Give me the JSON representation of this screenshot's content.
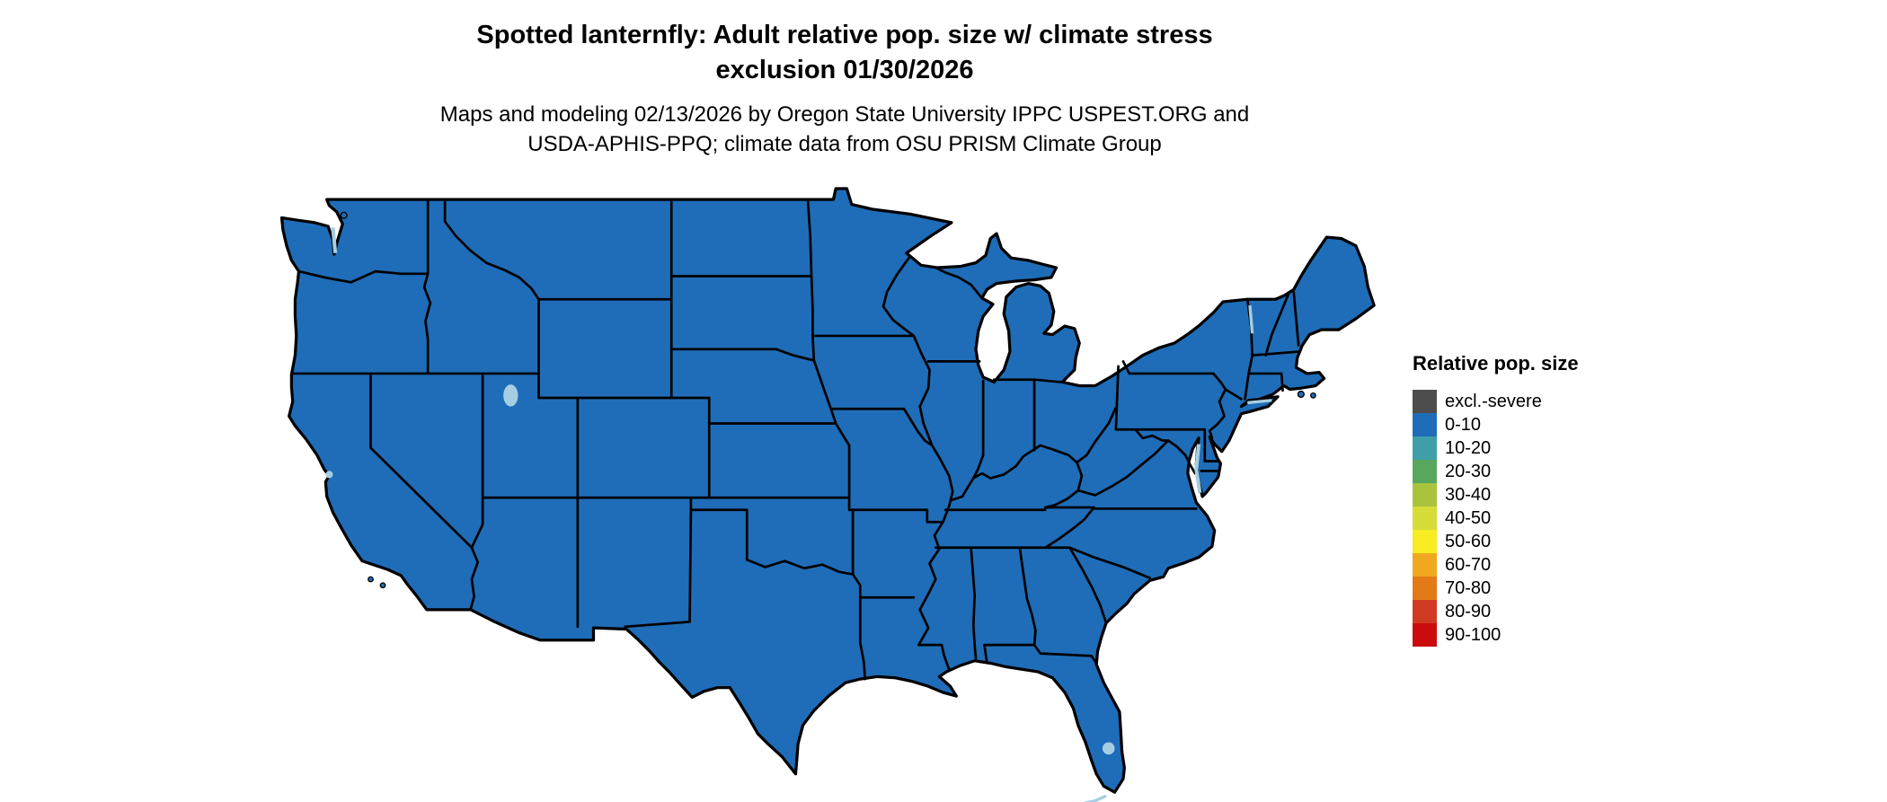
{
  "header": {
    "title_line1": "Spotted lanternfly: Adult relative pop. size w/ climate stress",
    "title_line2": "exclusion 01/30/2026",
    "subtitle_line1": "Maps and modeling 02/13/2026 by Oregon State University IPPC USPEST.ORG and",
    "subtitle_line2": "USDA-APHIS-PPQ; climate data from OSU PRISM Climate Group"
  },
  "legend": {
    "title": "Relative pop. size",
    "items": [
      {
        "label": "excl.-severe",
        "color": "#4d4d4d"
      },
      {
        "label": "0-10",
        "color": "#1f6db8"
      },
      {
        "label": "10-20",
        "color": "#3f9fa8"
      },
      {
        "label": "20-30",
        "color": "#57a75f"
      },
      {
        "label": "30-40",
        "color": "#a9c33c"
      },
      {
        "label": "40-50",
        "color": "#d5dc38"
      },
      {
        "label": "50-60",
        "color": "#f8ec23"
      },
      {
        "label": "60-70",
        "color": "#efa820"
      },
      {
        "label": "70-80",
        "color": "#e37a18"
      },
      {
        "label": "80-90",
        "color": "#d03a22"
      },
      {
        "label": "90-100",
        "color": "#cb0c0f"
      }
    ]
  },
  "map": {
    "region": "Contiguous United States",
    "fill_category": "0-10",
    "fill_color": "#1f6db8",
    "border_color": "#000000",
    "water_color": "#a6cee3",
    "background_color": "#ffffff"
  }
}
